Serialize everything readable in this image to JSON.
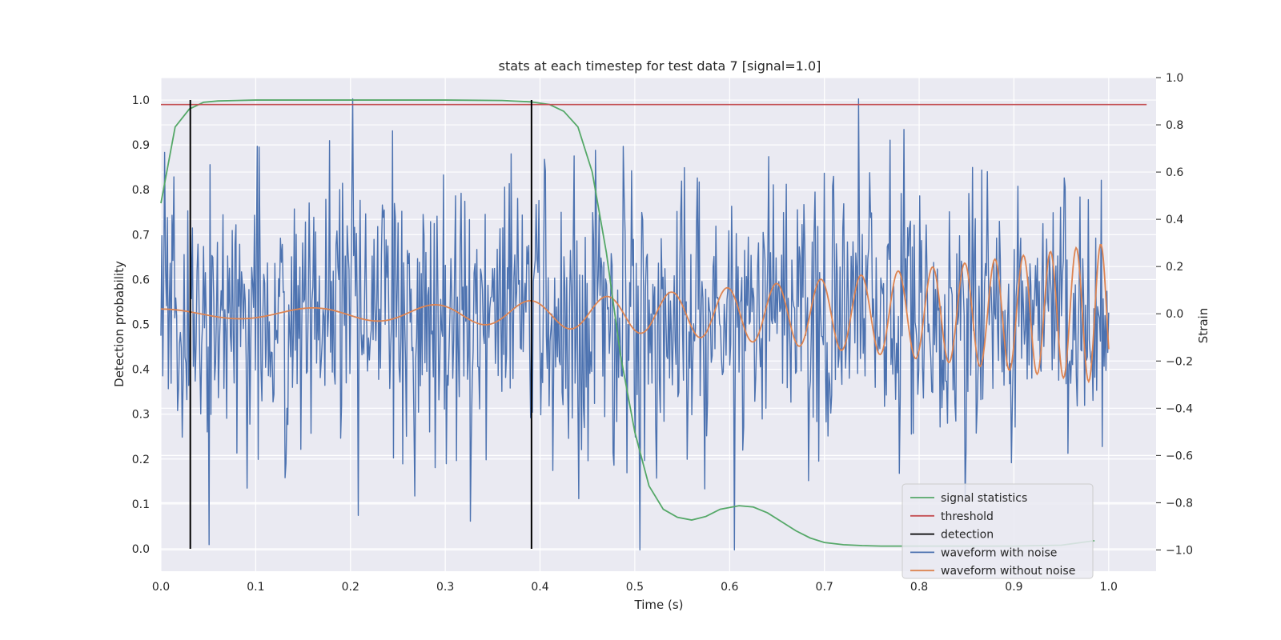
{
  "chart_data": {
    "type": "line",
    "title": "stats at each timestep for test data 7 [signal=1.0]",
    "xlabel": "Time (s)",
    "ylabel_left": "Detection probability",
    "ylabel_right": "Strain",
    "xlim": [
      0.0,
      1.05
    ],
    "ylim_left": [
      -0.05,
      1.05
    ],
    "ylim_right": [
      -1.09,
      1.0
    ],
    "grid": true,
    "legend_position": "lower right",
    "x_ticks": [
      0.0,
      0.1,
      0.2,
      0.3,
      0.4,
      0.5,
      0.6,
      0.7,
      0.8,
      0.9,
      1.0
    ],
    "x_tick_labels": [
      "0.0",
      "0.1",
      "0.2",
      "0.3",
      "0.4",
      "0.5",
      "0.6",
      "0.7",
      "0.8",
      "0.9",
      "1.0"
    ],
    "y_left_ticks": [
      0.0,
      0.1,
      0.2,
      0.3,
      0.4,
      0.5,
      0.6,
      0.7,
      0.8,
      0.9,
      1.0
    ],
    "y_left_tick_labels": [
      "0.0",
      "0.1",
      "0.2",
      "0.3",
      "0.4",
      "0.5",
      "0.6",
      "0.7",
      "0.8",
      "0.9",
      "1.0"
    ],
    "y_right_ticks": [
      1.0,
      0.8,
      0.6,
      0.4,
      0.2,
      0.0,
      -0.2,
      -0.4,
      -0.6,
      -0.8,
      -1.0
    ],
    "y_right_tick_labels": [
      "1.0",
      "0.8",
      "0.6",
      "0.4",
      "0.2",
      "0.0",
      "−0.2",
      "−0.4",
      "−0.6",
      "−0.8",
      "−1.0"
    ],
    "colors": {
      "background": "#eaeaf2",
      "grid": "#ffffff",
      "signal_statistics": "#55a868",
      "threshold": "#c44e52",
      "detection": "#000000",
      "waveform_with_noise": "#4c72b0",
      "waveform_without_noise": "#dd8452"
    },
    "series": [
      {
        "name": "signal statistics",
        "axis": "left",
        "x": [
          0.0,
          0.015,
          0.03,
          0.045,
          0.06,
          0.08,
          0.1,
          0.2,
          0.3,
          0.36,
          0.39,
          0.41,
          0.425,
          0.44,
          0.455,
          0.47,
          0.485,
          0.5,
          0.515,
          0.53,
          0.545,
          0.56,
          0.575,
          0.59,
          0.61,
          0.625,
          0.64,
          0.655,
          0.67,
          0.685,
          0.7,
          0.72,
          0.74,
          0.76,
          0.8,
          0.85,
          0.9,
          0.95,
          0.985
        ],
        "y": [
          0.77,
          0.94,
          0.98,
          0.995,
          0.998,
          0.999,
          1.0,
          1.0,
          1.0,
          0.999,
          0.996,
          0.99,
          0.975,
          0.94,
          0.84,
          0.66,
          0.43,
          0.26,
          0.14,
          0.088,
          0.07,
          0.064,
          0.072,
          0.088,
          0.096,
          0.093,
          0.08,
          0.06,
          0.04,
          0.024,
          0.014,
          0.009,
          0.007,
          0.006,
          0.006,
          0.006,
          0.006,
          0.008,
          0.018
        ]
      },
      {
        "name": "threshold",
        "axis": "left",
        "x": [
          0.0,
          1.04
        ],
        "y": [
          0.99,
          0.99
        ]
      },
      {
        "name": "detection",
        "axis": "left",
        "x_positions": [
          0.031,
          0.391
        ],
        "y_range": [
          0.0,
          1.0
        ]
      },
      {
        "name": "waveform with noise",
        "axis": "right",
        "x_start": 0.0,
        "x_end": 1.0,
        "n_points": 1024,
        "amplitude_range": [
          -1.0,
          0.91
        ],
        "envelope_approx": 0.55
      },
      {
        "name": "waveform without noise",
        "axis": "right",
        "x_start": 0.0,
        "x_end": 1.0,
        "description_of_shape": "chirp",
        "start_amplitude": 0.02,
        "end_amplitude": 0.3,
        "start_frequency_hz": 6,
        "end_frequency_hz": 40,
        "end_value": -0.1
      }
    ]
  }
}
